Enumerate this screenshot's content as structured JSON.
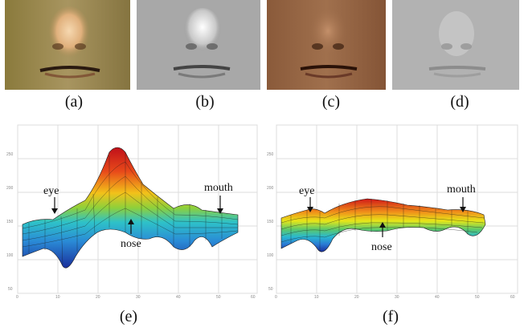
{
  "figure": {
    "panels": [
      {
        "id": "a",
        "caption": "(a)",
        "kind": "face-photo-color-bright"
      },
      {
        "id": "b",
        "caption": "(b)",
        "kind": "face-photo-gray-highcontrast"
      },
      {
        "id": "c",
        "caption": "(c)",
        "kind": "face-photo-color-dark"
      },
      {
        "id": "d",
        "caption": "(d)",
        "kind": "face-photo-gray-lowcontrast"
      },
      {
        "id": "e",
        "caption": "(e)",
        "kind": "surface-plot",
        "annotations": {
          "eye": "eye",
          "nose": "nose",
          "mouth": "mouth"
        },
        "yticks": [
          "250",
          "200",
          "150",
          "100",
          "50"
        ],
        "xticks": [
          "0",
          "10",
          "20",
          "30",
          "40",
          "50",
          "60"
        ]
      },
      {
        "id": "f",
        "caption": "(f)",
        "kind": "surface-plot",
        "annotations": {
          "eye": "eye",
          "nose": "nose",
          "mouth": "mouth"
        },
        "yticks": [
          "250",
          "200",
          "150",
          "100",
          "50"
        ],
        "xticks": [
          "0",
          "10",
          "20",
          "30",
          "40",
          "50",
          "60"
        ]
      }
    ]
  },
  "colors": {
    "surface_high": "#d7191c",
    "surface_mid": "#e6e619",
    "surface_low": "#2b83ba",
    "surface_min": "#1a2f9c",
    "grid": "#d9d9d9"
  }
}
